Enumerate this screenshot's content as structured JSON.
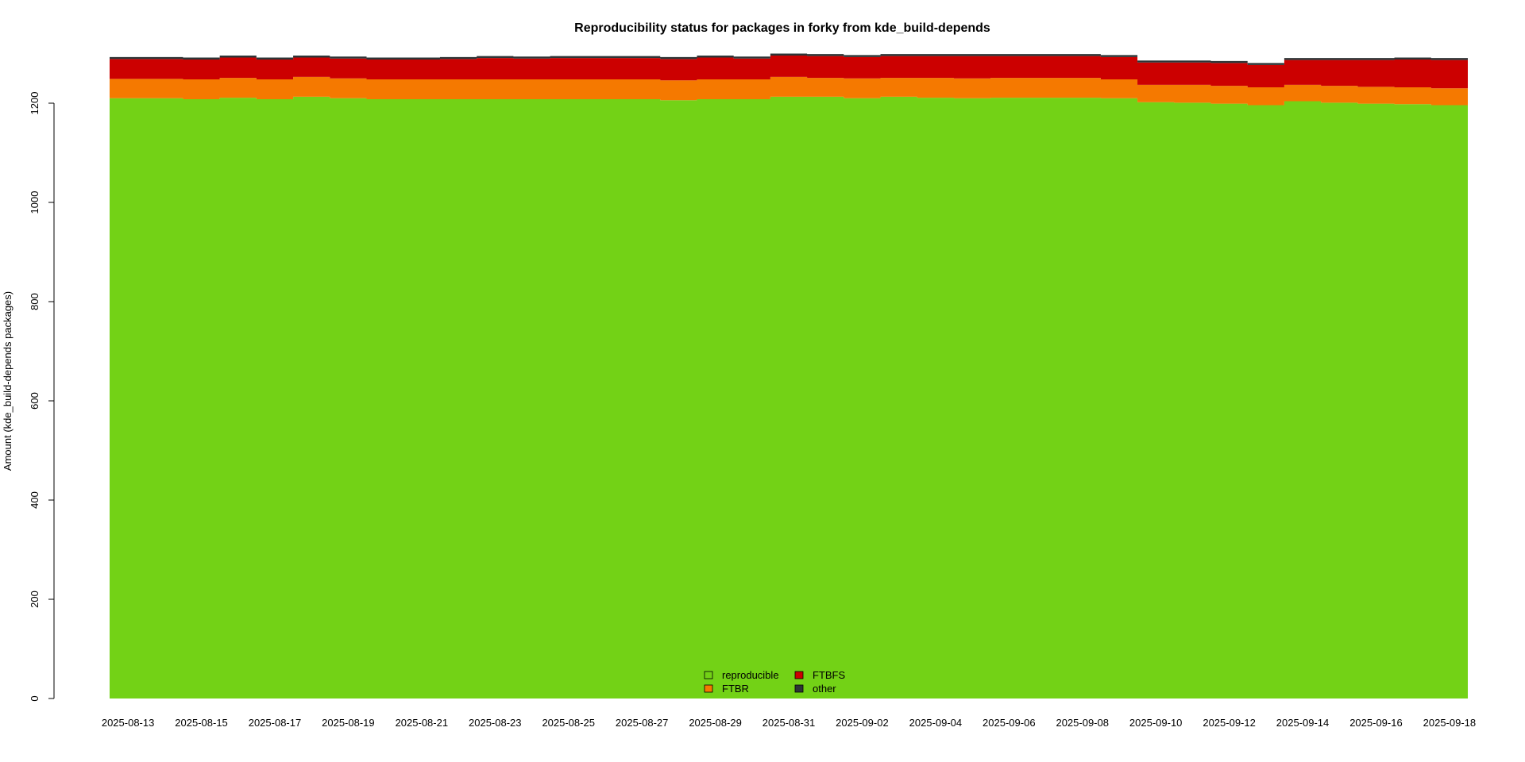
{
  "chart_data": {
    "type": "area",
    "stacked": true,
    "step": true,
    "title": "Reproducibility status for packages in forky from kde_build-depends",
    "xlabel": "",
    "ylabel": "Amount (kde_build-depends packages)",
    "ylim": [
      0,
      1290
    ],
    "yticks": [
      0,
      200,
      400,
      600,
      800,
      1000,
      1200
    ],
    "x": [
      "2025-08-13",
      "2025-08-14",
      "2025-08-15",
      "2025-08-16",
      "2025-08-17",
      "2025-08-18",
      "2025-08-19",
      "2025-08-20",
      "2025-08-21",
      "2025-08-22",
      "2025-08-23",
      "2025-08-24",
      "2025-08-25",
      "2025-08-26",
      "2025-08-27",
      "2025-08-28",
      "2025-08-29",
      "2025-08-30",
      "2025-08-31",
      "2025-09-01",
      "2025-09-02",
      "2025-09-03",
      "2025-09-04",
      "2025-09-05",
      "2025-09-06",
      "2025-09-07",
      "2025-09-08",
      "2025-09-09",
      "2025-09-10",
      "2025-09-11",
      "2025-09-12",
      "2025-09-13",
      "2025-09-14",
      "2025-09-15",
      "2025-09-16",
      "2025-09-17",
      "2025-09-18"
    ],
    "xticks": [
      "2025-08-13",
      "2025-08-15",
      "2025-08-17",
      "2025-08-19",
      "2025-08-21",
      "2025-08-23",
      "2025-08-25",
      "2025-08-27",
      "2025-08-29",
      "2025-08-31",
      "2025-09-02",
      "2025-09-04",
      "2025-09-06",
      "2025-09-08",
      "2025-09-10",
      "2025-09-12",
      "2025-09-14",
      "2025-09-16",
      "2025-09-18"
    ],
    "series": [
      {
        "name": "reproducible",
        "color": "#73d216",
        "values": [
          1210,
          1210,
          1208,
          1211,
          1208,
          1213,
          1210,
          1208,
          1208,
          1208,
          1208,
          1208,
          1208,
          1208,
          1208,
          1206,
          1208,
          1208,
          1213,
          1213,
          1210,
          1213,
          1211,
          1210,
          1211,
          1211,
          1211,
          1210,
          1202,
          1201,
          1199,
          1196,
          1204,
          1201,
          1199,
          1198,
          1196
        ]
      },
      {
        "name": "FTBR",
        "color": "#f57900",
        "values": [
          39,
          39,
          40,
          40,
          40,
          40,
          40,
          40,
          40,
          40,
          40,
          40,
          40,
          40,
          40,
          40,
          40,
          40,
          40,
          38,
          40,
          38,
          40,
          40,
          40,
          40,
          40,
          38,
          35,
          36,
          36,
          36,
          33,
          34,
          34,
          34,
          34
        ]
      },
      {
        "name": "FTBFS",
        "color": "#cc0000",
        "values": [
          40,
          40,
          40,
          41,
          40,
          39,
          40,
          40,
          40,
          41,
          43,
          42,
          43,
          43,
          43,
          43,
          44,
          42,
          43,
          44,
          43,
          44,
          44,
          45,
          44,
          44,
          44,
          45,
          45,
          45,
          46,
          45,
          50,
          52,
          54,
          56,
          57
        ]
      },
      {
        "name": "other",
        "color": "#2e3436",
        "values": [
          4,
          4,
          4,
          4,
          4,
          4,
          4,
          4,
          4,
          4,
          4,
          4,
          4,
          4,
          4,
          4,
          4,
          4,
          4,
          4,
          4,
          4,
          4,
          4,
          4,
          4,
          4,
          4,
          4,
          4,
          4,
          4,
          4,
          4,
          4,
          4,
          4
        ]
      }
    ],
    "legend": {
      "placement": "bottom-center",
      "columns": [
        [
          "reproducible",
          "FTBR"
        ],
        [
          "FTBFS",
          "other"
        ]
      ]
    },
    "grid": false
  }
}
